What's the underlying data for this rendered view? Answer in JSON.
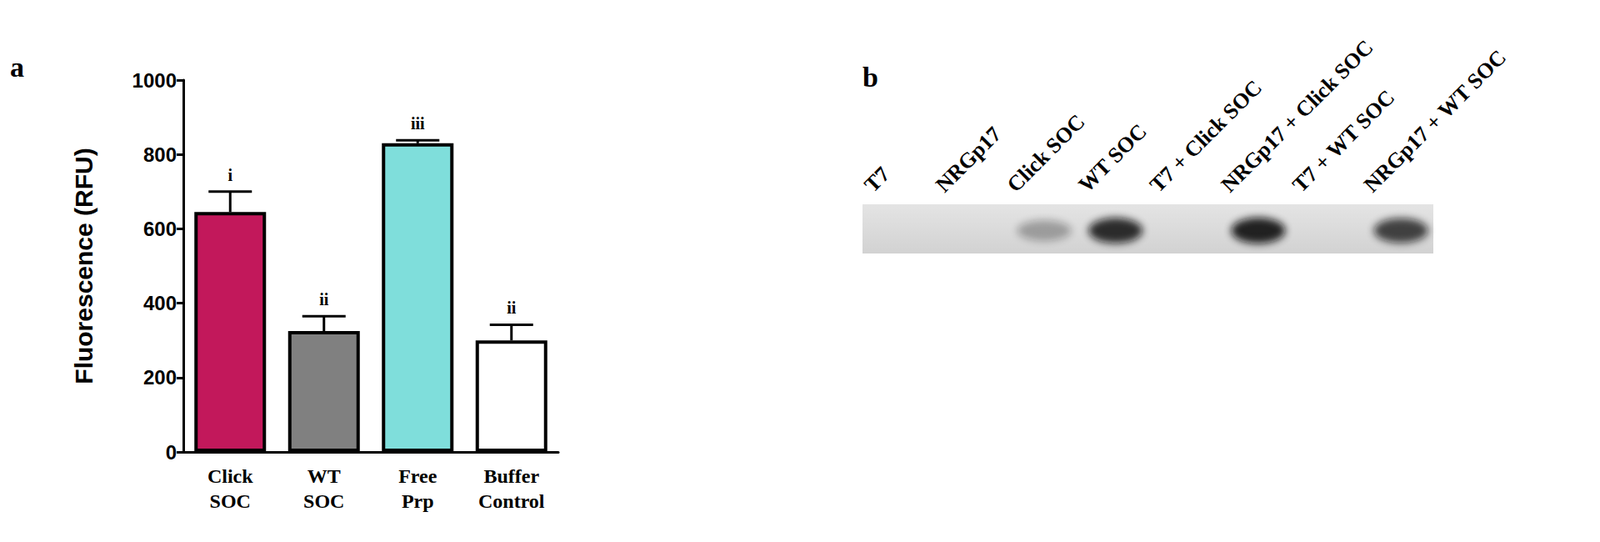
{
  "chart_data": {
    "type": "bar",
    "panel_label": "a",
    "y_label": "Fluorescence (RFU)",
    "categories": [
      "Click SOC",
      "WT SOC",
      "Free Prp",
      "Buffer Control"
    ],
    "values": [
      645,
      325,
      830,
      300
    ],
    "errors": [
      55,
      40,
      8,
      42
    ],
    "annotations": [
      "i",
      "ii",
      "iii",
      "ii"
    ],
    "colors": [
      "#c2185b",
      "#808080",
      "#7fdedb",
      "#ffffff"
    ],
    "ylim": [
      0,
      1000
    ],
    "yticks": [
      0,
      200,
      400,
      600,
      800,
      1000
    ],
    "grid": false
  },
  "blot": {
    "panel_label": "b",
    "lanes": [
      {
        "label": "T7",
        "intensity": 0
      },
      {
        "label": "NRGp17",
        "intensity": 0
      },
      {
        "label": "Click SOC",
        "intensity": 0.3
      },
      {
        "label": "WT SOC",
        "intensity": 0.85
      },
      {
        "label": "T7 + Click SOC",
        "intensity": 0
      },
      {
        "label": "NRGp17 + Click SOC",
        "intensity": 0.9
      },
      {
        "label": "T7 + WT SOC",
        "intensity": 0
      },
      {
        "label": "NRGp17 + WT SOC",
        "intensity": 0.75
      }
    ]
  }
}
